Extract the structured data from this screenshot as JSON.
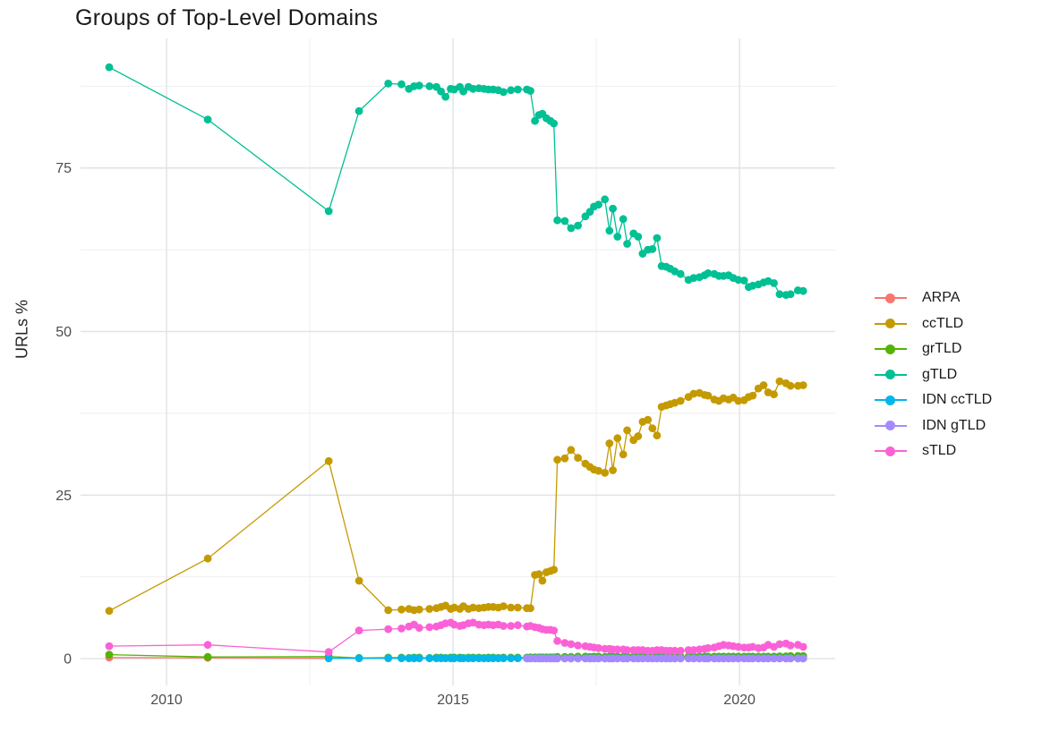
{
  "chart_data": {
    "type": "line",
    "title": "Groups of Top-Level Domains",
    "xlabel": "",
    "ylabel": "URLs %",
    "grid": true,
    "legend_position": "right",
    "x_domain": [
      2008.5,
      2021.67
    ],
    "y_domain": [
      -4.1,
      94.8
    ],
    "x_ticks": [
      2010,
      2015,
      2020
    ],
    "x_tick_labels": [
      "2010",
      "2015",
      "2020"
    ],
    "x_minor_ticks": [
      2012.5,
      2017.5
    ],
    "y_ticks": [
      0,
      25,
      50,
      75
    ],
    "y_tick_labels": [
      "0",
      "25",
      "50",
      "75"
    ],
    "y_minor_ticks": [
      12.5,
      37.5,
      62.5,
      87.5
    ],
    "grid_major_color": "#e2e2e2",
    "grid_minor_color": "#efefef",
    "x_grids": {
      "sparse": [
        2009.0,
        2010.72,
        2012.83
      ],
      "last_sparse": [
        2012.83
      ],
      "early": [
        2013.36,
        2013.87
      ],
      "mid": [
        2014.1,
        2014.23,
        2014.32,
        2014.41,
        2014.59,
        2014.71,
        2014.79,
        2014.87,
        2014.96,
        2015.02,
        2015.12,
        2015.18,
        2015.27,
        2015.35,
        2015.45,
        2015.54,
        2015.62,
        2015.7,
        2015.79,
        2015.88,
        2016.01,
        2016.13,
        2016.29,
        2016.35
      ],
      "mid_end": [
        2016.29,
        2016.35
      ],
      "jump": [
        2016.43,
        2016.5,
        2016.56,
        2016.63,
        2016.7,
        2016.76
      ],
      "tail": [
        2016.82,
        2016.95,
        2017.06,
        2017.18,
        2017.31,
        2017.39,
        2017.46,
        2017.54,
        2017.65,
        2017.73,
        2017.79,
        2017.87,
        2017.97,
        2018.04,
        2018.15,
        2018.23,
        2018.31,
        2018.4,
        2018.48,
        2018.56,
        2018.64,
        2018.72,
        2018.79,
        2018.87,
        2018.97,
        2019.11,
        2019.2,
        2019.3,
        2019.39,
        2019.45,
        2019.56,
        2019.64,
        2019.72,
        2019.81,
        2019.89,
        2019.98,
        2020.08,
        2020.16,
        2020.23,
        2020.33,
        2020.42,
        2020.5,
        2020.6,
        2020.7,
        2020.81,
        2020.89,
        2021.02,
        2021.11
      ]
    },
    "series": [
      {
        "name": "ARPA",
        "color": "#F8766D",
        "x_parts": [
          "sparse"
        ],
        "y": [
          0.15,
          0.12,
          0.05
        ]
      },
      {
        "name": "ccTLD",
        "color": "#C49A00",
        "x_parts": [
          "sparse",
          "early",
          "mid",
          "jump",
          "tail"
        ],
        "y": [
          7.3,
          15.3,
          30.2,
          11.9,
          7.4,
          7.5,
          7.6,
          7.4,
          7.5,
          7.6,
          7.7,
          7.9,
          8.1,
          7.6,
          7.8,
          7.6,
          8.0,
          7.6,
          7.8,
          7.7,
          7.8,
          7.9,
          7.9,
          7.8,
          8.0,
          7.8,
          7.8,
          7.7,
          7.7,
          12.8,
          12.9,
          11.9,
          13.2,
          13.4,
          13.6,
          30.4,
          30.6,
          31.9,
          30.7,
          29.8,
          29.3,
          28.9,
          28.7,
          28.4,
          32.9,
          28.8,
          33.7,
          31.2,
          34.9,
          33.4,
          34.0,
          36.2,
          36.5,
          35.2,
          34.1,
          38.5,
          38.7,
          38.9,
          39.1,
          39.4,
          40.0,
          40.5,
          40.6,
          40.3,
          40.2,
          39.6,
          39.4,
          39.8,
          39.6,
          39.9,
          39.4,
          39.5,
          40.0,
          40.2,
          41.3,
          41.8,
          40.7,
          40.4,
          42.4,
          42.1,
          41.7,
          41.7,
          41.8
        ]
      },
      {
        "name": "grTLD",
        "color": "#53B400",
        "x_parts": [
          "sparse",
          "early",
          "mid",
          "jump",
          "tail"
        ],
        "y": [
          0.6,
          0.25,
          0.3,
          0.1,
          0.15,
          0.15,
          0.1,
          0.15,
          0.15,
          0.1,
          0.15,
          0.15,
          0.1,
          0.15,
          0.15,
          0.15,
          0.1,
          0.15,
          0.15,
          0.15,
          0.1,
          0.15,
          0.15,
          0.1,
          0.15,
          0.15,
          0.15,
          0.15,
          0.2,
          0.2,
          0.2,
          0.2,
          0.2,
          0.2,
          0.2,
          0.25,
          0.25,
          0.25,
          0.3,
          0.3,
          0.25,
          0.3,
          0.3,
          0.25,
          0.3,
          0.3,
          0.3,
          0.25,
          0.3,
          0.3,
          0.3,
          0.3,
          0.25,
          0.3,
          0.3,
          0.3,
          0.3,
          0.3,
          0.3,
          0.3,
          0.3,
          0.3,
          0.3,
          0.3,
          0.3,
          0.3,
          0.3,
          0.3,
          0.3,
          0.3,
          0.3,
          0.3,
          0.3,
          0.3,
          0.3,
          0.3,
          0.3,
          0.3,
          0.35,
          0.35,
          0.4,
          0.4,
          0.4
        ]
      },
      {
        "name": "gTLD",
        "color": "#00C094",
        "x_parts": [
          "sparse",
          "early",
          "mid",
          "jump",
          "tail"
        ],
        "y": [
          90.4,
          82.4,
          68.4,
          83.7,
          87.9,
          87.8,
          87.1,
          87.5,
          87.6,
          87.5,
          87.4,
          86.7,
          85.9,
          87.1,
          87.0,
          87.4,
          86.7,
          87.4,
          87.1,
          87.2,
          87.1,
          87.0,
          87.0,
          86.9,
          86.6,
          86.9,
          87.0,
          87.0,
          86.8,
          82.2,
          83.1,
          83.3,
          82.6,
          82.2,
          81.8,
          67.0,
          66.9,
          65.8,
          66.2,
          67.6,
          68.3,
          69.1,
          69.4,
          70.2,
          65.4,
          68.8,
          64.5,
          67.2,
          63.4,
          65.0,
          64.5,
          61.9,
          62.5,
          62.6,
          64.3,
          60.0,
          59.9,
          59.6,
          59.2,
          58.8,
          57.9,
          58.2,
          58.3,
          58.6,
          58.9,
          58.8,
          58.5,
          58.5,
          58.6,
          58.2,
          57.9,
          57.8,
          56.8,
          57.0,
          57.2,
          57.5,
          57.7,
          57.4,
          55.7,
          55.6,
          55.7,
          56.3,
          56.2
        ]
      },
      {
        "name": "IDN ccTLD",
        "color": "#00B6EB",
        "x_parts": [
          "last_sparse",
          "early",
          "mid",
          "jump",
          "tail"
        ],
        "y_fill": 0.05
      },
      {
        "name": "IDN gTLD",
        "color": "#A58AFF",
        "x_parts": [
          "mid_end",
          "jump",
          "tail"
        ],
        "y_fill": 0.02
      },
      {
        "name": "sTLD",
        "color": "#FB61D7",
        "x_parts": [
          "sparse",
          "early",
          "mid",
          "jump",
          "tail"
        ],
        "y": [
          1.9,
          2.1,
          1.0,
          4.3,
          4.5,
          4.6,
          4.9,
          5.2,
          4.7,
          4.8,
          4.9,
          5.1,
          5.4,
          5.5,
          5.2,
          5.0,
          5.1,
          5.4,
          5.5,
          5.2,
          5.1,
          5.2,
          5.1,
          5.2,
          5.0,
          5.0,
          5.1,
          4.9,
          5.0,
          4.8,
          4.7,
          4.5,
          4.4,
          4.4,
          4.3,
          2.7,
          2.4,
          2.2,
          2.0,
          1.9,
          1.8,
          1.7,
          1.6,
          1.5,
          1.5,
          1.4,
          1.4,
          1.4,
          1.3,
          1.3,
          1.3,
          1.3,
          1.2,
          1.2,
          1.3,
          1.3,
          1.2,
          1.2,
          1.2,
          1.2,
          1.3,
          1.3,
          1.4,
          1.5,
          1.6,
          1.7,
          1.9,
          2.1,
          2.0,
          1.9,
          1.8,
          1.7,
          1.7,
          1.8,
          1.6,
          1.7,
          2.1,
          1.8,
          2.2,
          2.3,
          2.0,
          2.1,
          1.8
        ]
      }
    ]
  }
}
